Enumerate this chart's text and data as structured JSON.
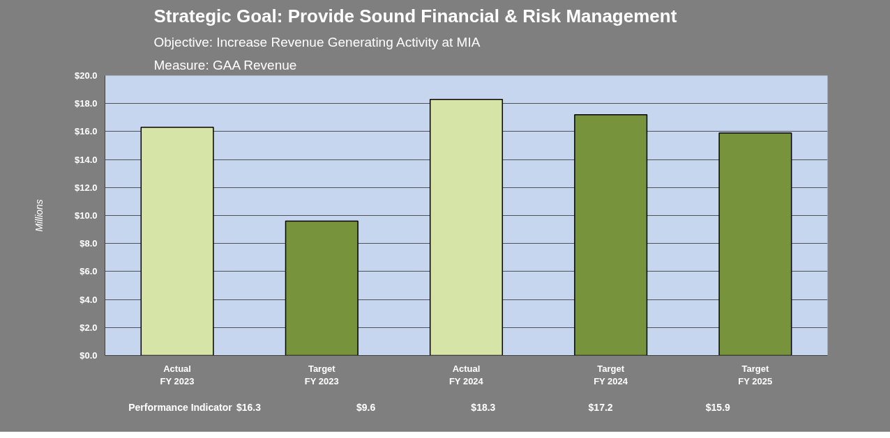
{
  "chart_data": {
    "type": "bar",
    "title": "Strategic Goal: Provide Sound Financial & Risk Management",
    "subtitle": "Objective: Increase Revenue Generating Activity at MIA",
    "ylabel": "Millions",
    "categories": [
      "Actual\nFY 2023",
      "Target\nFY 2023",
      "Actual\nFY 2024",
      "Target\nFY 2024",
      "Target\nFY 2025"
    ],
    "values": [
      16.3,
      9.6,
      18.3,
      17.2,
      15.9
    ],
    "colors": [
      "#d7e4a8",
      "#77933c",
      "#d7e4a8",
      "#77933c",
      "#77933c"
    ],
    "value_labels": [
      "$16.3",
      "$9.6",
      "$18.3",
      "$17.2",
      "$15.9"
    ],
    "annotations": [
      "Measure: GAA Revenue",
      "Performance Indicator"
    ],
    "ylim": [
      0,
      20
    ],
    "yticks": [
      {
        "value": 0,
        "label": "$0.0"
      },
      {
        "value": 2,
        "label": "$2.0"
      },
      {
        "value": 4,
        "label": "$4.0"
      },
      {
        "value": 6,
        "label": "$6.0"
      },
      {
        "value": 8,
        "label": "$8.0"
      },
      {
        "value": 10,
        "label": "$10.0"
      },
      {
        "value": 12,
        "label": "$12.0"
      },
      {
        "value": 14,
        "label": "$14.0"
      },
      {
        "value": 16,
        "label": "$16.0"
      },
      {
        "value": 18,
        "label": "$18.0"
      },
      {
        "value": 20,
        "label": "$20.0"
      }
    ],
    "grid": "y"
  }
}
